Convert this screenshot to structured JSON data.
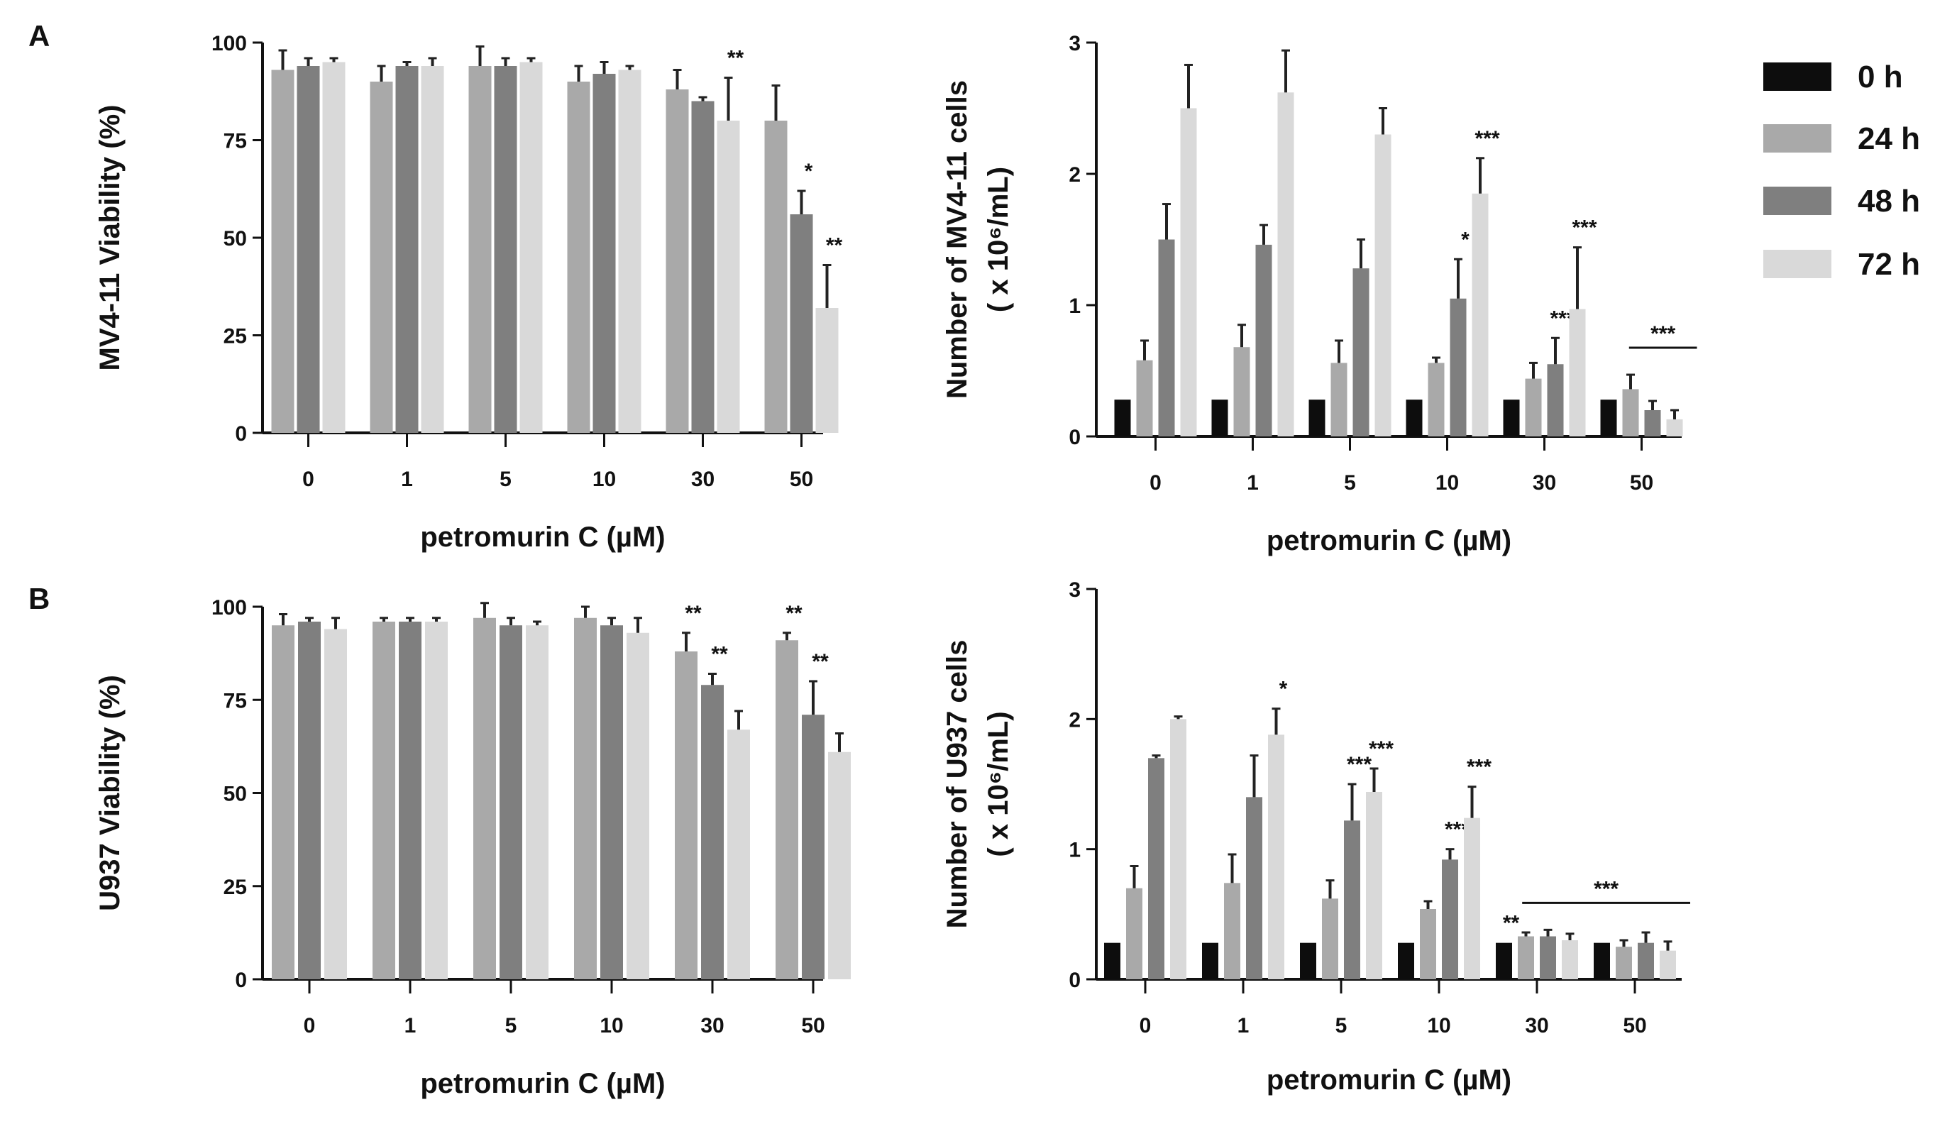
{
  "colors": {
    "h0": "#0d0d0d",
    "h24": "#a9a9a9",
    "h48": "#7f7f7f",
    "h72": "#d9d9d9",
    "axis": "#111111",
    "error": "#222222"
  },
  "legend": {
    "items": [
      {
        "label": "0 h",
        "color_key": "h0"
      },
      {
        "label": "24 h",
        "color_key": "h24"
      },
      {
        "label": "48 h",
        "color_key": "h48"
      },
      {
        "label": "72 h",
        "color_key": "h72"
      }
    ]
  },
  "chart_data": [
    {
      "id": "A-viability",
      "panel_label": "A",
      "type": "bar",
      "ylabel": "MV4-11 Viability  (%)",
      "xlabel": "petromurin C (µM)",
      "categories": [
        "0",
        "1",
        "5",
        "10",
        "30",
        "50"
      ],
      "ylim": [
        0,
        100
      ],
      "yticks": [
        0,
        25,
        50,
        75,
        100
      ],
      "series": [
        {
          "name": "24 h",
          "color_key": "h24",
          "values": [
            93,
            90,
            94,
            90,
            88,
            80
          ],
          "errors": [
            5,
            4,
            5,
            4,
            5,
            9
          ],
          "sig": [
            "",
            "",
            "",
            "",
            "",
            ""
          ]
        },
        {
          "name": "48 h",
          "color_key": "h48",
          "values": [
            94,
            94,
            94,
            92,
            85,
            56
          ],
          "errors": [
            2,
            1,
            2,
            3,
            1,
            6
          ],
          "sig": [
            "",
            "",
            "",
            "",
            "",
            "*"
          ]
        },
        {
          "name": "72 h",
          "color_key": "h72",
          "values": [
            95,
            94,
            95,
            93,
            80,
            32
          ],
          "errors": [
            1,
            2,
            1,
            1,
            11,
            11
          ],
          "sig": [
            "",
            "",
            "",
            "",
            "**",
            "**"
          ]
        }
      ]
    },
    {
      "id": "A-count",
      "type": "bar",
      "ylabel": "Number of MV4-11 cells",
      "ylabel2": "( x 10⁶/mL)",
      "xlabel": "petromurin C (µM)",
      "categories": [
        "0",
        "1",
        "5",
        "10",
        "30",
        "50"
      ],
      "ylim": [
        0,
        3
      ],
      "yticks": [
        0,
        1,
        2,
        3
      ],
      "series": [
        {
          "name": "0 h",
          "color_key": "h0",
          "values": [
            0.28,
            0.28,
            0.28,
            0.28,
            0.28,
            0.28
          ],
          "errors": [
            0,
            0,
            0,
            0,
            0,
            0
          ],
          "sig": [
            "",
            "",
            "",
            "",
            "",
            ""
          ]
        },
        {
          "name": "24 h",
          "color_key": "h24",
          "values": [
            0.58,
            0.68,
            0.56,
            0.56,
            0.44,
            0.36
          ],
          "errors": [
            0.15,
            0.17,
            0.17,
            0.04,
            0.12,
            0.11
          ],
          "sig": [
            "",
            "",
            "",
            "",
            "",
            ""
          ]
        },
        {
          "name": "48 h",
          "color_key": "h48",
          "values": [
            1.5,
            1.46,
            1.28,
            1.05,
            0.55,
            0.2
          ],
          "errors": [
            0.27,
            0.15,
            0.22,
            0.3,
            0.2,
            0.07
          ],
          "sig": [
            "",
            "",
            "",
            "*",
            "***",
            ""
          ]
        },
        {
          "name": "72 h",
          "color_key": "h72",
          "values": [
            2.5,
            2.62,
            2.3,
            1.85,
            0.97,
            0.13
          ],
          "errors": [
            0.33,
            0.32,
            0.2,
            0.27,
            0.47,
            0.07
          ],
          "sig": [
            "",
            "",
            "",
            "***",
            "***",
            ""
          ]
        }
      ],
      "sig_lines": [
        {
          "label": "***",
          "from_group": 5,
          "to_group": 5
        }
      ]
    },
    {
      "id": "B-viability",
      "panel_label": "B",
      "type": "bar",
      "ylabel": "U937 Viability  (%)",
      "xlabel": "petromurin C (µM)",
      "categories": [
        "0",
        "1",
        "5",
        "10",
        "30",
        "50"
      ],
      "ylim": [
        0,
        100
      ],
      "yticks": [
        0,
        25,
        50,
        75,
        100
      ],
      "series": [
        {
          "name": "24 h",
          "color_key": "h24",
          "values": [
            95,
            96,
            97,
            97,
            88,
            91
          ],
          "errors": [
            3,
            1,
            4,
            3,
            5,
            2
          ],
          "sig": [
            "",
            "",
            "",
            "",
            "**",
            "**"
          ]
        },
        {
          "name": "48 h",
          "color_key": "h48",
          "values": [
            96,
            96,
            95,
            95,
            79,
            71
          ],
          "errors": [
            1,
            1,
            2,
            2,
            3,
            9
          ],
          "sig": [
            "",
            "",
            "",
            "",
            "**",
            "**"
          ]
        },
        {
          "name": "72 h",
          "color_key": "h72",
          "values": [
            94,
            96,
            95,
            93,
            67,
            61
          ],
          "errors": [
            3,
            1,
            1,
            4,
            5,
            5
          ],
          "sig": [
            "",
            "",
            "",
            "",
            "",
            ""
          ]
        }
      ]
    },
    {
      "id": "B-count",
      "type": "bar",
      "ylabel": "Number of U937 cells",
      "ylabel2": "( x 10⁶/mL)",
      "xlabel": "petromurin C (µM)",
      "categories": [
        "0",
        "1",
        "5",
        "10",
        "30",
        "50"
      ],
      "ylim": [
        0,
        3
      ],
      "yticks": [
        0,
        1,
        2,
        3
      ],
      "series": [
        {
          "name": "0 h",
          "color_key": "h0",
          "values": [
            0.28,
            0.28,
            0.28,
            0.28,
            0.28,
            0.28
          ],
          "errors": [
            0,
            0,
            0,
            0,
            0,
            0
          ],
          "sig": [
            "",
            "",
            "",
            "",
            "**",
            ""
          ]
        },
        {
          "name": "24 h",
          "color_key": "h24",
          "values": [
            0.7,
            0.74,
            0.62,
            0.54,
            0.33,
            0.25
          ],
          "errors": [
            0.17,
            0.22,
            0.14,
            0.06,
            0.03,
            0.05
          ],
          "sig": [
            "",
            "",
            "",
            "",
            "",
            ""
          ]
        },
        {
          "name": "48 h",
          "color_key": "h48",
          "values": [
            1.7,
            1.4,
            1.22,
            0.92,
            0.33,
            0.28
          ],
          "errors": [
            0.02,
            0.32,
            0.28,
            0.08,
            0.05,
            0.08
          ],
          "sig": [
            "",
            "",
            "***",
            "***",
            "",
            ""
          ]
        },
        {
          "name": "72 h",
          "color_key": "h72",
          "values": [
            2.0,
            1.88,
            1.44,
            1.24,
            0.3,
            0.22
          ],
          "errors": [
            0.02,
            0.2,
            0.18,
            0.24,
            0.05,
            0.07
          ],
          "sig": [
            "",
            "*",
            "***",
            "***",
            "",
            ""
          ]
        }
      ],
      "sig_lines": [
        {
          "label": "***",
          "from_group": 4,
          "to_group": 5
        }
      ]
    }
  ]
}
